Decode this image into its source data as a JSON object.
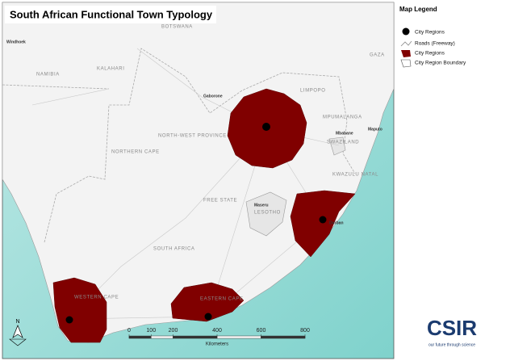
{
  "title": "South African Functional Town Typology",
  "legend": {
    "title": "Map Legend",
    "items": [
      "City Regions",
      "Roads (Freeway)",
      "City Regions",
      "City Region Boundary"
    ]
  },
  "places": [
    "NAMIBIA",
    "BOTSWANA",
    "SOUTH AFRICA",
    "LESOTHO",
    "SWAZILAND",
    "Gaborone",
    "Maseru",
    "Mbabane",
    "Maputo",
    "Durban",
    "Windhoek",
    "NORTH-WEST PROVINCE",
    "NORTHERN CAPE",
    "LIMPOPO",
    "KWAZULU NATAL",
    "FREE STATE",
    "EASTERN CAPE",
    "WESTERN CAPE",
    "MPUMALANGA",
    "GAZA",
    "KALAHARI"
  ],
  "scale_bar": {
    "ticks": [
      0,
      100,
      200,
      400,
      600,
      800
    ],
    "unit": "Kilometers"
  },
  "north": "N",
  "logo": {
    "name": "CSIR",
    "tagline": "our future through science"
  }
}
